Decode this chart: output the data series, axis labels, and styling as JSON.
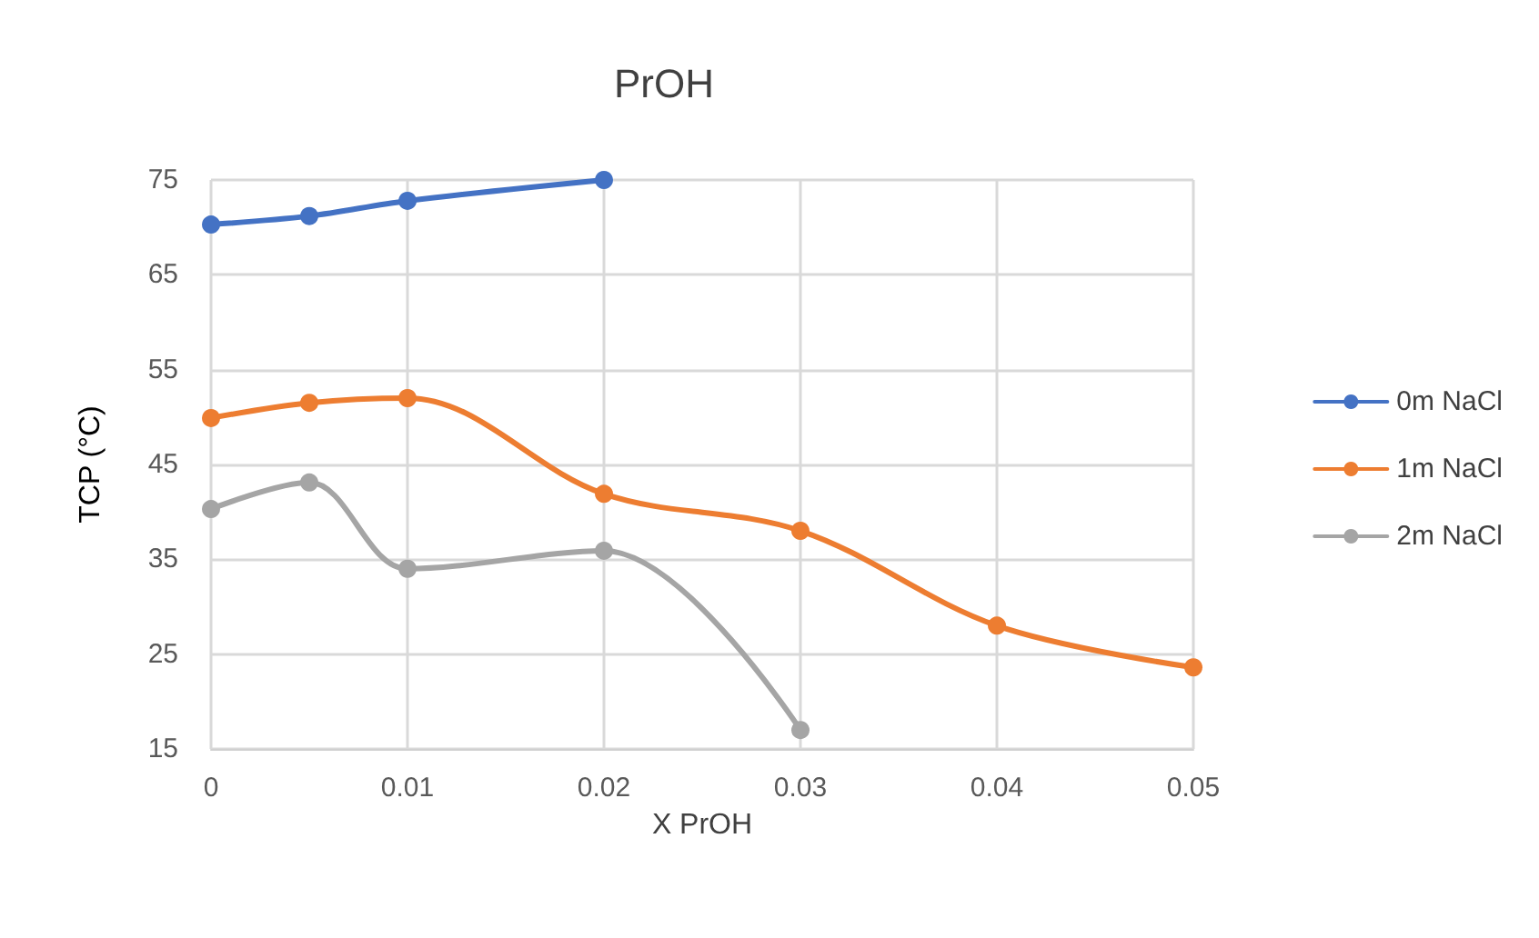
{
  "chart_data": {
    "type": "line",
    "title": "PrOH",
    "xlabel": "X PrOH",
    "ylabel": "TCP (°C)",
    "series": [
      {
        "name": "0m NaCl",
        "color": "#4472c4",
        "x": [
          0,
          0.005,
          0.01,
          0.02
        ],
        "values": [
          70.3,
          71.2,
          72.8,
          75
        ]
      },
      {
        "name": "1m NaCl",
        "color": "#ed7d31",
        "x": [
          0,
          0.005,
          0.01,
          0.02,
          0.03,
          0.04,
          0.05
        ],
        "values": [
          49.9,
          51.5,
          52.0,
          41.9,
          38.0,
          28.0,
          23.6
        ]
      },
      {
        "name": "2m NaCl",
        "color": "#a5a5a5",
        "x": [
          0,
          0.005,
          0.01,
          0.02,
          0.03
        ],
        "values": [
          40.3,
          43.1,
          34.0,
          35.9,
          17.0
        ]
      }
    ],
    "xlim": [
      0,
      0.05
    ],
    "xticks": [
      0,
      0.01,
      0.02,
      0.03,
      0.04,
      0.05
    ],
    "ylim": [
      15,
      75
    ],
    "yticks": [
      15,
      25,
      35,
      45,
      55,
      65,
      75
    ],
    "grid": true,
    "legend": "right",
    "marker": "circle"
  }
}
